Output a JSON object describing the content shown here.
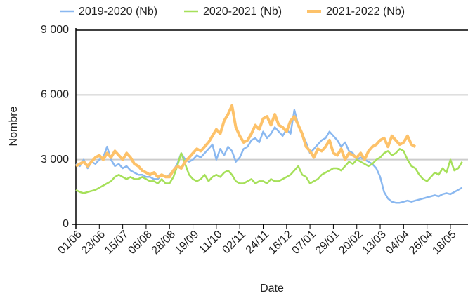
{
  "chart_data": {
    "type": "line",
    "x_label": "Date",
    "y_label": "Nombre",
    "categories": [
      "01/06",
      null,
      null,
      null,
      null,
      null,
      "23/06",
      null,
      null,
      null,
      null,
      null,
      "15/07",
      null,
      null,
      null,
      null,
      null,
      "06/08",
      null,
      null,
      null,
      null,
      null,
      "28/08",
      null,
      null,
      null,
      null,
      null,
      "19/09",
      null,
      null,
      null,
      null,
      null,
      "11/10",
      null,
      null,
      null,
      null,
      null,
      "02/11",
      null,
      null,
      null,
      null,
      null,
      "24/11",
      null,
      null,
      null,
      null,
      null,
      "16/12",
      null,
      null,
      null,
      null,
      null,
      "07/01",
      null,
      null,
      null,
      null,
      null,
      "29/01",
      null,
      null,
      null,
      null,
      null,
      "20/02",
      null,
      null,
      null,
      null,
      null,
      "13/03",
      null,
      null,
      null,
      null,
      null,
      "04/04",
      null,
      null,
      null,
      null,
      null,
      "26/04",
      null,
      null,
      null,
      null,
      null,
      "18/05",
      null,
      null,
      null
    ],
    "series": [
      {
        "name": "2019-2020 (Nb)",
        "color": "#8ab8f0",
        "values": [
          2800,
          2700,
          3000,
          2600,
          2900,
          2800,
          3000,
          3100,
          3600,
          3000,
          2700,
          2800,
          2600,
          2700,
          2500,
          2400,
          2300,
          2300,
          2200,
          2200,
          2100,
          2100,
          2300,
          2200,
          2300,
          2500,
          2800,
          3300,
          3000,
          2900,
          3000,
          3200,
          3100,
          3300,
          3500,
          3700,
          3000,
          3500,
          3200,
          3600,
          3400,
          2900,
          3100,
          3500,
          3600,
          3900,
          4000,
          3800,
          4300,
          4000,
          4200,
          4500,
          4300,
          4100,
          4400,
          4200,
          5300,
          4600,
          4200,
          3800,
          3300,
          3500,
          3700,
          3900,
          4000,
          4300,
          4100,
          3900,
          3600,
          3800,
          3400,
          3300,
          3000,
          3100,
          3000,
          2900,
          2800,
          2600,
          2200,
          1500,
          1200,
          1050,
          1000,
          1000,
          1050,
          1100,
          1050,
          1100,
          1150,
          1200,
          1250,
          1300,
          1350,
          1300,
          1400,
          1450,
          1400,
          1500,
          1600,
          1700
        ]
      },
      {
        "name": "2020-2021 (Nb)",
        "color": "#a6e05a",
        "values": [
          1600,
          1500,
          1450,
          1500,
          1550,
          1600,
          1700,
          1800,
          1900,
          2000,
          2200,
          2300,
          2200,
          2100,
          2200,
          2100,
          2100,
          2200,
          2100,
          2000,
          2000,
          1900,
          2100,
          1900,
          1900,
          2200,
          2700,
          3300,
          2800,
          2300,
          2100,
          2000,
          2100,
          2300,
          2000,
          2200,
          2300,
          2200,
          2400,
          2500,
          2300,
          2000,
          1900,
          1900,
          2000,
          2100,
          1900,
          2000,
          2000,
          1900,
          2100,
          2000,
          2000,
          2100,
          2200,
          2300,
          2500,
          2700,
          2300,
          2200,
          1900,
          2000,
          2100,
          2300,
          2400,
          2500,
          2600,
          2600,
          2500,
          2700,
          2900,
          2800,
          3000,
          2900,
          2800,
          2700,
          2800,
          3000,
          3100,
          3300,
          3400,
          3200,
          3300,
          3500,
          3400,
          3000,
          2700,
          2600,
          2300,
          2100,
          2000,
          2200,
          2400,
          2300,
          2600,
          2400,
          3000,
          2500,
          2600,
          2900
        ]
      },
      {
        "name": "2021-2022 (Nb)",
        "color": "#fdc26a",
        "values": [
          2700,
          2800,
          2900,
          2700,
          2900,
          3100,
          3200,
          3000,
          3300,
          3100,
          3400,
          3200,
          3000,
          3300,
          3100,
          2800,
          2700,
          2500,
          2400,
          2300,
          2400,
          2200,
          2300,
          2200,
          2200,
          2500,
          2700,
          2600,
          2900,
          3100,
          3300,
          3500,
          3400,
          3600,
          3800,
          4100,
          4400,
          4200,
          4800,
          5100,
          5500,
          4500,
          4100,
          3800,
          3900,
          4200,
          4600,
          4400,
          4900,
          5000,
          4600,
          5100,
          4600,
          4500,
          4300,
          4800,
          5000,
          4600,
          4200,
          3600,
          3400,
          3100,
          3500,
          3400,
          3600,
          3900,
          3300,
          3200,
          3500,
          3000,
          3300,
          3200,
          3100,
          3300,
          3000,
          3400,
          3600,
          3700,
          3900,
          4000,
          3600,
          4100,
          3900,
          3700,
          3800,
          4100,
          3700,
          3600,
          null,
          null,
          null,
          null,
          null,
          null,
          null,
          null,
          null,
          null,
          null,
          null
        ]
      }
    ],
    "ylim": [
      0,
      9000
    ],
    "yticks": [
      0,
      {
        "value": 3000,
        "label": "3 000"
      },
      {
        "value": 6000,
        "label": "6 000"
      },
      {
        "value": 9000,
        "label": "9 000"
      }
    ],
    "grid": true
  }
}
